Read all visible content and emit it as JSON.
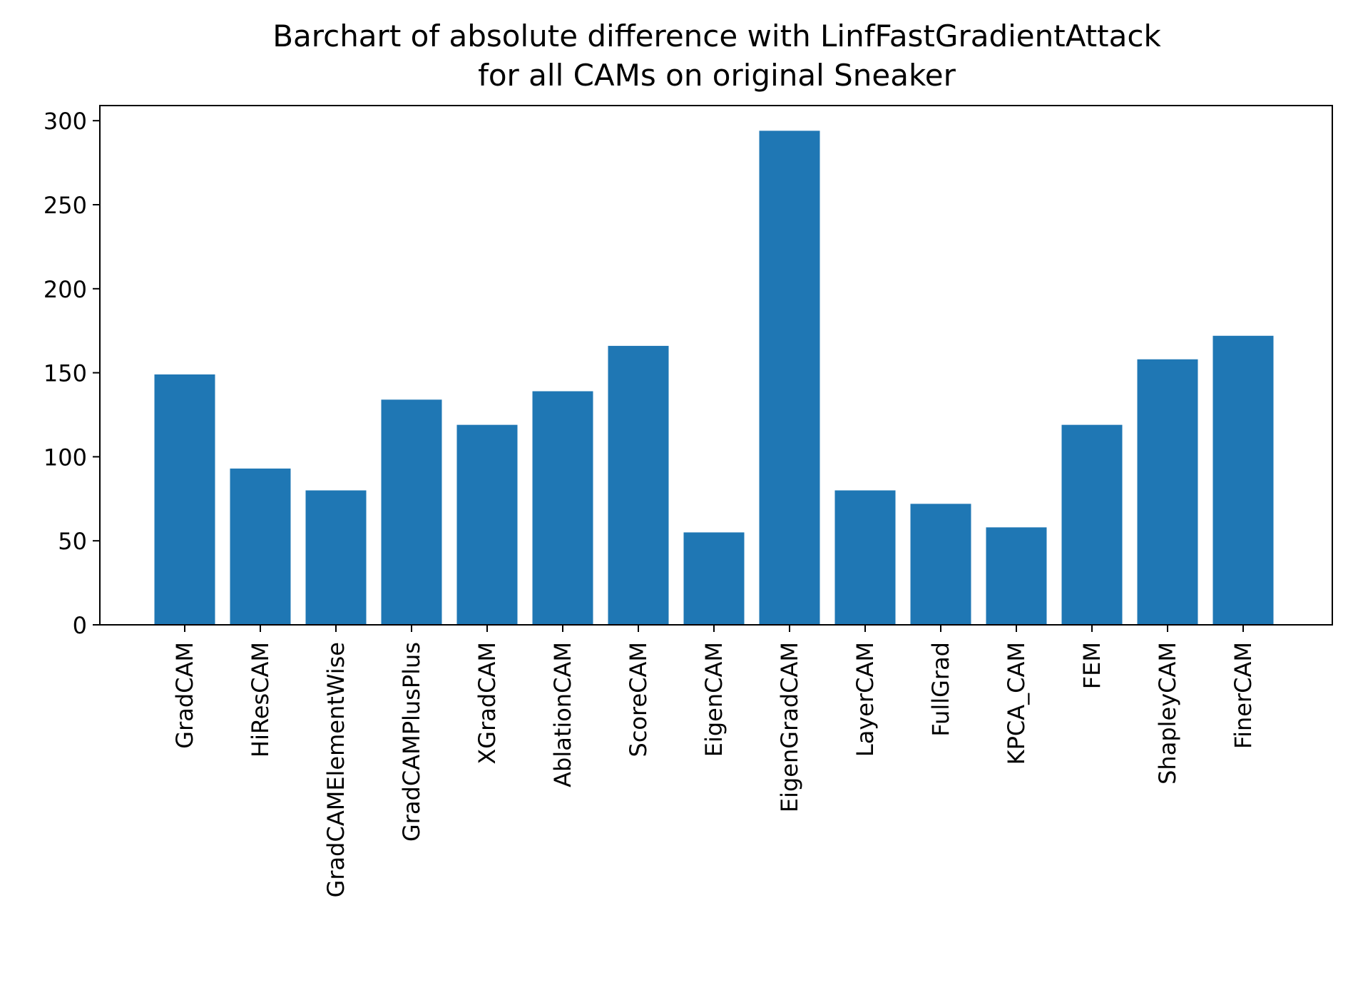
{
  "chart_data": {
    "type": "bar",
    "title_line1": "Barchart of absolute difference with LinfFastGradientAttack",
    "title_line2": "for all CAMs on original Sneaker",
    "xlabel": "",
    "ylabel": "",
    "categories": [
      "GradCAM",
      "HiResCAM",
      "GradCAMElementWise",
      "GradCAMPlusPlus",
      "XGradCAM",
      "AblationCAM",
      "ScoreCAM",
      "EigenCAM",
      "EigenGradCAM",
      "LayerCAM",
      "FullGrad",
      "KPCA_CAM",
      "FEM",
      "ShapleyCAM",
      "FinerCAM"
    ],
    "values": [
      149,
      93,
      80,
      134,
      119,
      139,
      166,
      55,
      294,
      80,
      72,
      58,
      119,
      158,
      172
    ],
    "yticks": [
      0,
      50,
      100,
      150,
      200,
      250,
      300
    ],
    "ylim": [
      0,
      309
    ],
    "bar_color": "#1f77b4",
    "grid": false,
    "legend": "none"
  }
}
